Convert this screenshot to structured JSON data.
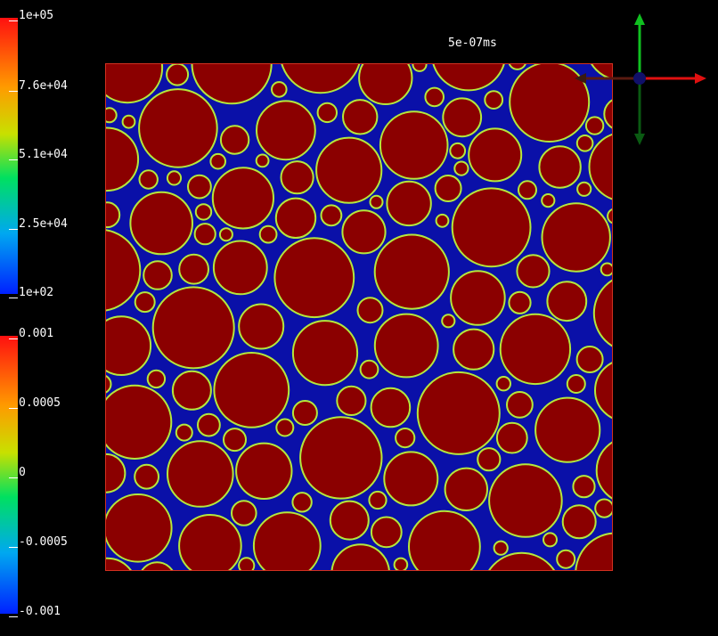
{
  "time_label": "5e-07ms",
  "colorbar_top": {
    "ticks": [
      "1e+05",
      "7.6e+04",
      "5.1e+04",
      "2.5e+04",
      "1e+02"
    ],
    "colors": [
      "#ff1010",
      "#ff9a00",
      "#c8e000",
      "#00e060",
      "#00a8f0",
      "#0020ff"
    ]
  },
  "colorbar_bottom": {
    "ticks": [
      "0.001",
      "0.0005",
      "0",
      "-0.0005",
      "-0.001"
    ],
    "colors": [
      "#ff1010",
      "#ff9a00",
      "#c8e000",
      "#00e060",
      "#00a8f0",
      "#0020ff"
    ]
  },
  "view": {
    "background_color": "#0a10a8",
    "particle_fill": "#8b0000",
    "particle_edge": "#b4e83c",
    "border_color": "#d03020"
  },
  "axes": {
    "x_color": "#e01010",
    "y_color": "#10c020",
    "origin_color": "#10106a"
  }
}
